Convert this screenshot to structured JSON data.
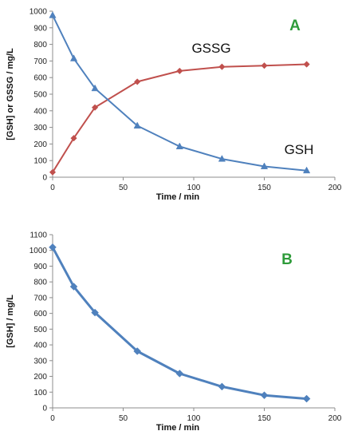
{
  "chart_data": [
    {
      "type": "line",
      "panel_label": "A",
      "xlabel": "Time / min",
      "ylabel": "[GSH] or GSSG / mg/L",
      "xlim": [
        0,
        200
      ],
      "ylim": [
        0,
        1000
      ],
      "xticks": [
        0,
        50,
        100,
        150,
        200
      ],
      "yticks": [
        0,
        100,
        200,
        300,
        400,
        500,
        600,
        700,
        800,
        900,
        1000
      ],
      "grid": false,
      "label_color": "#2e9b3a",
      "series": [
        {
          "name": "GSSG",
          "color": "#c0504d",
          "marker": "diamond",
          "x": [
            0,
            15,
            30,
            60,
            90,
            120,
            150,
            180
          ],
          "y": [
            30,
            235,
            420,
            575,
            640,
            665,
            672,
            680
          ]
        },
        {
          "name": "GSH",
          "color": "#4f81bd",
          "marker": "triangle",
          "x": [
            0,
            15,
            30,
            60,
            90,
            120,
            150,
            180
          ],
          "y": [
            975,
            715,
            535,
            310,
            185,
            110,
            65,
            40
          ]
        }
      ]
    },
    {
      "type": "line",
      "panel_label": "B",
      "xlabel": "Time / min",
      "ylabel": "[GSH] / mg/L",
      "xlim": [
        0,
        200
      ],
      "ylim": [
        0,
        1100
      ],
      "xticks": [
        0,
        50,
        100,
        150,
        200
      ],
      "yticks": [
        0,
        100,
        200,
        300,
        400,
        500,
        600,
        700,
        800,
        900,
        1000,
        1100
      ],
      "grid": false,
      "label_color": "#2e9b3a",
      "series": [
        {
          "color": "#4f81bd",
          "marker": "diamond",
          "x": [
            0,
            15,
            30,
            60,
            90,
            120,
            150,
            180
          ],
          "y": [
            1020,
            770,
            605,
            360,
            218,
            135,
            80,
            58
          ]
        }
      ]
    }
  ]
}
